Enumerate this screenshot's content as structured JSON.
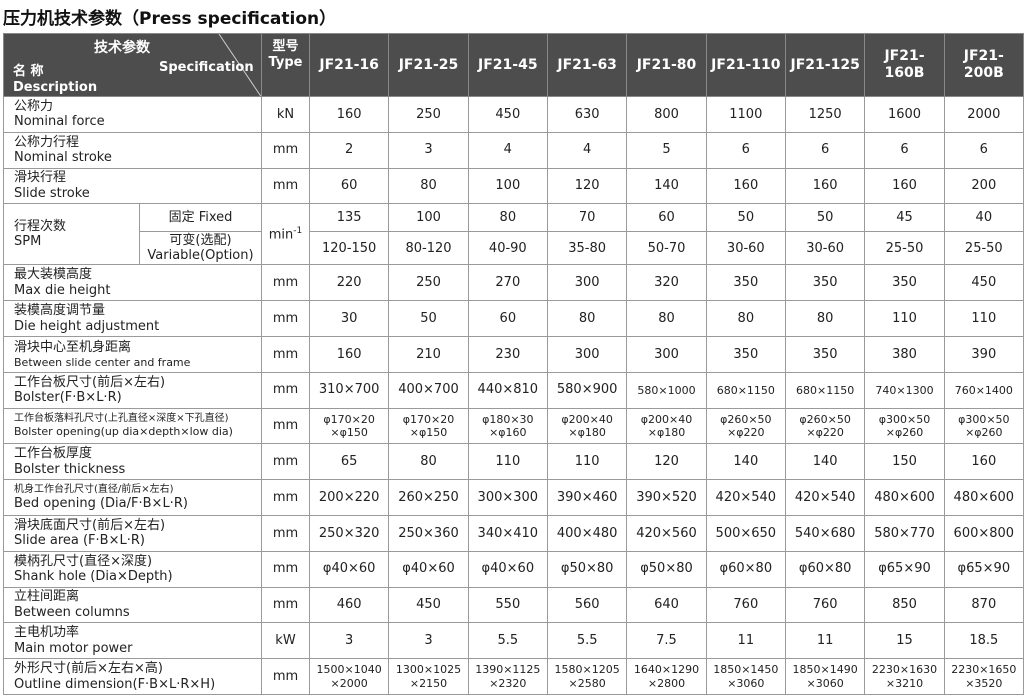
{
  "title": "压力机技术参数（Press specification）",
  "header": {
    "spec_cn": "技术参数",
    "spec_en": "Specification",
    "name_cn": "名 称",
    "name_en": "Description",
    "type_cn": "型号",
    "type_en": "Type",
    "models": [
      "JF21-16",
      "JF21-25",
      "JF21-45",
      "JF21-63",
      "JF21-80",
      "JF21-110",
      "JF21-125",
      "JF21-160B",
      "JF21-200B"
    ]
  },
  "rows": [
    {
      "label_cn": "公称力",
      "label_en": "Nominal force",
      "unit": "kN",
      "values": [
        160,
        250,
        450,
        630,
        800,
        1100,
        1250,
        1600,
        2000
      ]
    },
    {
      "label_cn": "公称力行程",
      "label_en": "Nominal stroke",
      "unit": "mm",
      "values": [
        2,
        3,
        4,
        4,
        5,
        6,
        6,
        6,
        6
      ]
    },
    {
      "label_cn": "滑块行程",
      "label_en": "Slide stroke",
      "unit": "mm",
      "values": [
        60,
        80,
        100,
        120,
        140,
        160,
        160,
        160,
        200
      ]
    },
    {
      "label_cn": "行程次数",
      "label_en": "SPM",
      "unit": "min",
      "unit_sup": "-1",
      "sub": [
        {
          "label_cn": "固定 Fixed",
          "values": [
            135,
            100,
            80,
            70,
            60,
            50,
            50,
            45,
            40
          ]
        },
        {
          "label_cn": "可变(选配)",
          "label_en": "Variable(Option)",
          "values": [
            "120-150",
            "80-120",
            "40-90",
            "35-80",
            "50-70",
            "30-60",
            "30-60",
            "25-50",
            "25-50"
          ]
        }
      ]
    },
    {
      "label_cn": "最大装模高度",
      "label_en": "Max die height",
      "unit": "mm",
      "values": [
        220,
        250,
        270,
        300,
        320,
        350,
        350,
        350,
        450
      ]
    },
    {
      "label_cn": "装模高度调节量",
      "label_en": "Die height adjustment",
      "unit": "mm",
      "values": [
        30,
        50,
        60,
        80,
        80,
        80,
        80,
        110,
        110
      ]
    },
    {
      "label_cn": "滑块中心至机身距离",
      "label_en": "Between slide center and frame",
      "unit": "mm",
      "values": [
        160,
        210,
        230,
        300,
        300,
        350,
        350,
        380,
        390
      ]
    },
    {
      "label_cn": "工作台板尺寸(前后×左右)",
      "label_en": "Bolster(F·B×L·R)",
      "unit": "mm",
      "values": [
        "310×700",
        "400×700",
        "440×810",
        "580×900",
        "580×1000",
        "680×1150",
        "680×1150",
        "740×1300",
        "760×1400"
      ]
    },
    {
      "label_cn": "工作台板落料孔尺寸(上孔直径×深度×下孔直径)",
      "label_en": "Bolster opening(up dia×depth×low dia)",
      "unit": "mm",
      "values": [
        [
          "φ170×20",
          "×φ150"
        ],
        [
          "φ170×20",
          "×φ150"
        ],
        [
          "φ180×30",
          "×φ160"
        ],
        [
          "φ200×40",
          "×φ180"
        ],
        [
          "φ200×40",
          "×φ180"
        ],
        [
          "φ260×50",
          "×φ220"
        ],
        [
          "φ260×50",
          "×φ220"
        ],
        [
          "φ300×50",
          "×φ260"
        ],
        [
          "φ300×50",
          "×φ260"
        ]
      ]
    },
    {
      "label_cn": "工作台板厚度",
      "label_en": "Bolster thickness",
      "unit": "mm",
      "values": [
        65,
        80,
        110,
        110,
        120,
        140,
        140,
        150,
        160
      ]
    },
    {
      "label_cn": "机身工作台孔尺寸(直径/前后×左右)",
      "label_en": "Bed opening (Dia/F·B×L·R)",
      "unit": "mm",
      "values": [
        "200×220",
        "260×250",
        "300×300",
        "390×460",
        "390×520",
        "420×540",
        "420×540",
        "480×600",
        "480×600"
      ]
    },
    {
      "label_cn": "滑块底面尺寸(前后×左右)",
      "label_en": "Slide area (F·B×L·R)",
      "unit": "mm",
      "values": [
        "250×320",
        "250×360",
        "340×410",
        "400×480",
        "420×560",
        "500×650",
        "540×680",
        "580×770",
        "600×800"
      ]
    },
    {
      "label_cn": "模柄孔尺寸(直径×深度)",
      "label_en": "Shank hole (Dia×Depth)",
      "unit": "mm",
      "values": [
        "φ40×60",
        "φ40×60",
        "φ40×60",
        "φ50×80",
        "φ50×80",
        "φ60×80",
        "φ60×80",
        "φ65×90",
        "φ65×90"
      ]
    },
    {
      "label_cn": "立柱间距离",
      "label_en": "Between columns",
      "unit": "mm",
      "values": [
        460,
        450,
        550,
        560,
        640,
        760,
        760,
        850,
        870
      ]
    },
    {
      "label_cn": "主电机功率",
      "label_en": "Main motor power",
      "unit": "kW",
      "values": [
        3,
        3,
        5.5,
        5.5,
        7.5,
        11,
        11,
        15,
        18.5
      ]
    },
    {
      "label_cn": "外形尺寸(前后×左右×高)",
      "label_en": "Outline dimension(F·B×L·R×H)",
      "unit": "mm",
      "values": [
        [
          "1500×1040",
          "×2000"
        ],
        [
          "1300×1025",
          "×2150"
        ],
        [
          "1390×1125",
          "×2320"
        ],
        [
          "1580×1205",
          "×2580"
        ],
        [
          "1640×1290",
          "×2800"
        ],
        [
          "1850×1450",
          "×3060"
        ],
        [
          "1850×1490",
          "×3060"
        ],
        [
          "2230×1630",
          "×3210"
        ],
        [
          "2230×1650",
          "×3520"
        ]
      ]
    }
  ]
}
